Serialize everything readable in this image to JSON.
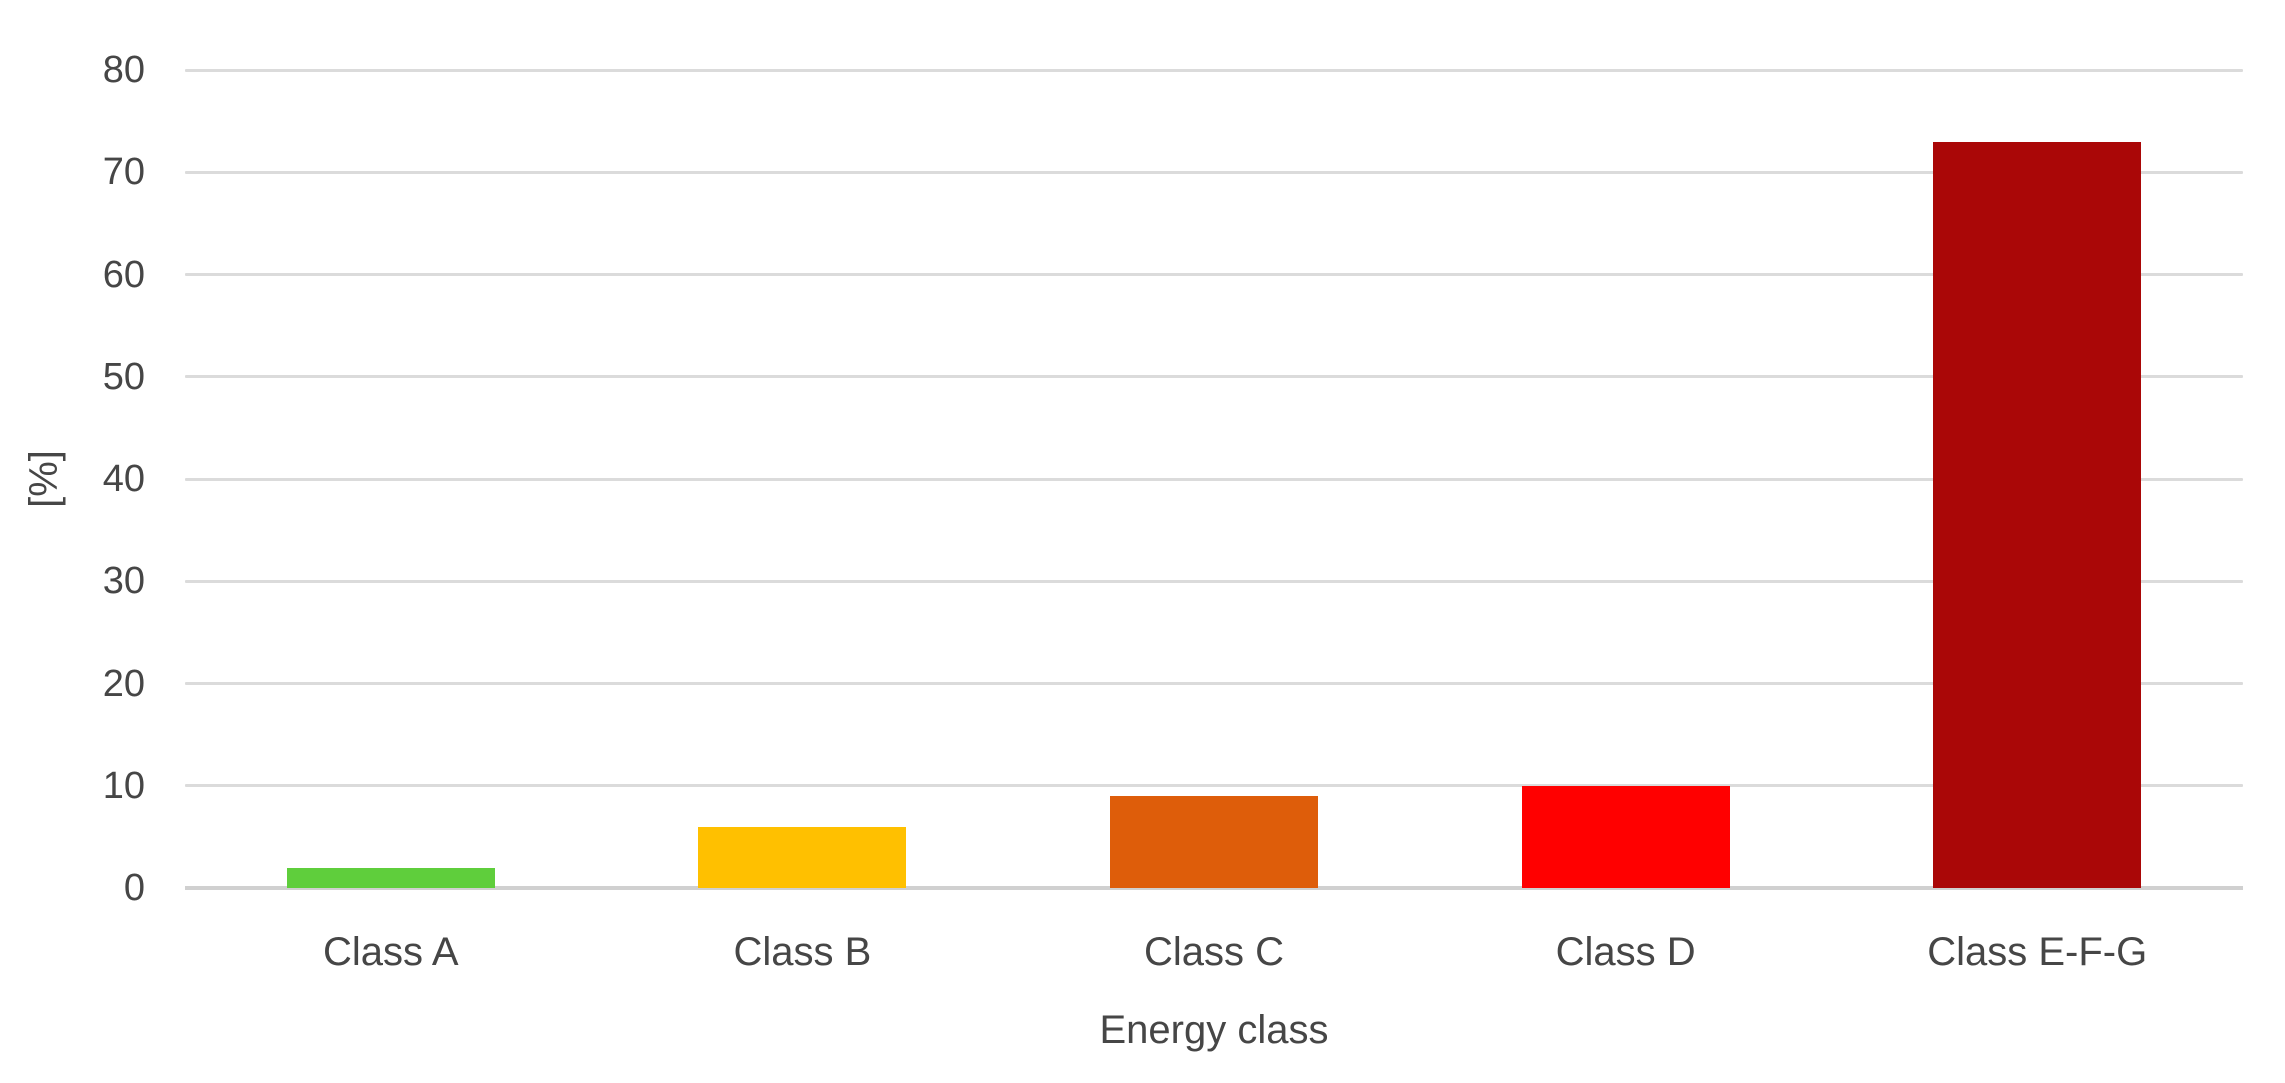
{
  "chart_data": {
    "type": "bar",
    "title": "",
    "xlabel": "Energy class",
    "ylabel": "[%]",
    "categories": [
      "Class A",
      "Class B",
      "Class C",
      "Class D",
      "Class E-F-G"
    ],
    "values": [
      2,
      6,
      9,
      10,
      73
    ],
    "bar_colors": [
      "#5FCE3C",
      "#FFC000",
      "#DE5D0A",
      "#FF0000",
      "#AA0707"
    ],
    "ylim": [
      0,
      80
    ],
    "ytick_step": 10,
    "ytick_labels": [
      "0",
      "10",
      "20",
      "30",
      "40",
      "50",
      "60",
      "70",
      "80"
    ],
    "grid": "horizontal",
    "legend": "none",
    "colors": {
      "background": "#FFFFFF",
      "gridline": "#DBDBDB",
      "axis_line": "#D0D0D0",
      "text": "#464646"
    }
  }
}
